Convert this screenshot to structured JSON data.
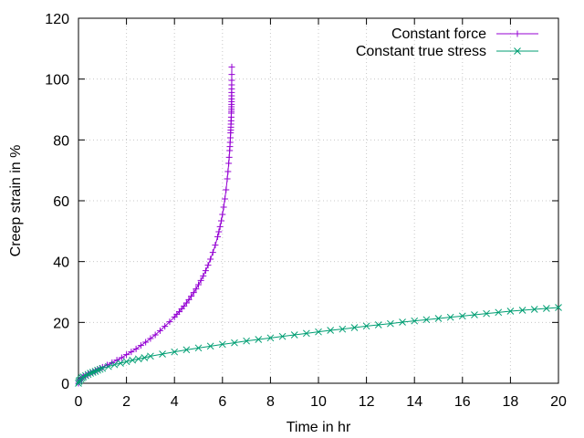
{
  "chart_data": {
    "type": "line",
    "xlabel": "Time in hr",
    "ylabel": "Creep strain in %",
    "xlim": [
      0,
      20
    ],
    "ylim": [
      0,
      120
    ],
    "xticks": [
      0,
      2,
      4,
      6,
      8,
      10,
      12,
      14,
      16,
      18,
      20
    ],
    "yticks": [
      0,
      20,
      40,
      60,
      80,
      100,
      120
    ],
    "grid": true,
    "legend_position": "top-right",
    "series": [
      {
        "name": "Constant force",
        "color": "#9400d3",
        "marker": "plus",
        "x": [
          0,
          0.02,
          0.05,
          0.1,
          0.15,
          0.2,
          0.3,
          0.4,
          0.5,
          0.6,
          0.7,
          0.8,
          0.9,
          1.0,
          1.2,
          1.4,
          1.6,
          1.8,
          2.0,
          2.2,
          2.4,
          2.6,
          2.8,
          3.0,
          3.2,
          3.4,
          3.6,
          3.8,
          4.0,
          4.1,
          4.2,
          4.3,
          4.4,
          4.5,
          4.6,
          4.7,
          4.8,
          4.9,
          5.0,
          5.1,
          5.2,
          5.3,
          5.4,
          5.5,
          5.6,
          5.7,
          5.8,
          5.85,
          5.9,
          5.95,
          6.0,
          6.05,
          6.1,
          6.15,
          6.2,
          6.23,
          6.26,
          6.28,
          6.3,
          6.31,
          6.32,
          6.33,
          6.34,
          6.345,
          6.35,
          6.355,
          6.36,
          6.365,
          6.37,
          6.372,
          6.374,
          6.376,
          6.378,
          6.38,
          6.381,
          6.382,
          6.383,
          6.384,
          6.385,
          6.386,
          6.387,
          6.388
        ],
        "y": [
          0,
          0.6,
          1.0,
          1.4,
          1.8,
          2.1,
          2.6,
          3.0,
          3.4,
          3.8,
          4.1,
          4.5,
          4.9,
          5.3,
          6.0,
          6.8,
          7.6,
          8.4,
          9.4,
          10.3,
          11.3,
          12.4,
          13.5,
          14.7,
          15.9,
          17.3,
          18.7,
          20.2,
          21.8,
          22.7,
          23.5,
          24.5,
          25.4,
          26.4,
          27.5,
          28.6,
          29.8,
          31.0,
          32.4,
          33.8,
          35.3,
          37.0,
          38.8,
          40.8,
          43.0,
          45.4,
          48.2,
          49.8,
          51.5,
          53.4,
          55.5,
          57.9,
          60.6,
          63.6,
          67.2,
          69.6,
          72.3,
          74.3,
          76.5,
          77.8,
          79.2,
          80.7,
          82.3,
          83.2,
          84.2,
          85.2,
          86.3,
          87.5,
          88.8,
          89.4,
          90.1,
          90.9,
          91.7,
          92.6,
          93.5,
          94.5,
          95.6,
          96.8,
          98.1,
          99.6,
          101.5,
          104.0
        ]
      },
      {
        "name": "Constant true stress",
        "color": "#009e73",
        "marker": "cross",
        "x": [
          0,
          0.02,
          0.05,
          0.1,
          0.15,
          0.2,
          0.3,
          0.4,
          0.5,
          0.6,
          0.7,
          0.8,
          0.9,
          1.0,
          1.25,
          1.5,
          1.75,
          2.0,
          2.25,
          2.5,
          2.75,
          3.0,
          3.5,
          4.0,
          4.5,
          5.0,
          5.5,
          6.0,
          6.5,
          7.0,
          7.5,
          8.0,
          8.5,
          9.0,
          9.5,
          10.0,
          10.5,
          11.0,
          11.5,
          12.0,
          12.5,
          13.0,
          13.5,
          14.0,
          14.5,
          15.0,
          15.5,
          16.0,
          16.5,
          17.0,
          17.5,
          18.0,
          18.5,
          19.0,
          19.5,
          20.0
        ],
        "y": [
          0,
          0.6,
          1.0,
          1.4,
          1.8,
          2.1,
          2.5,
          2.9,
          3.3,
          3.6,
          3.9,
          4.3,
          4.6,
          4.9,
          5.5,
          6.1,
          6.6,
          7.1,
          7.6,
          8.0,
          8.4,
          8.9,
          9.6,
          10.3,
          11.0,
          11.6,
          12.2,
          12.8,
          13.3,
          13.9,
          14.4,
          14.9,
          15.4,
          15.9,
          16.4,
          16.9,
          17.4,
          17.8,
          18.3,
          18.8,
          19.2,
          19.6,
          20.1,
          20.5,
          20.9,
          21.3,
          21.7,
          22.1,
          22.5,
          22.9,
          23.3,
          23.7,
          24.0,
          24.3,
          24.6,
          24.9
        ]
      }
    ]
  }
}
